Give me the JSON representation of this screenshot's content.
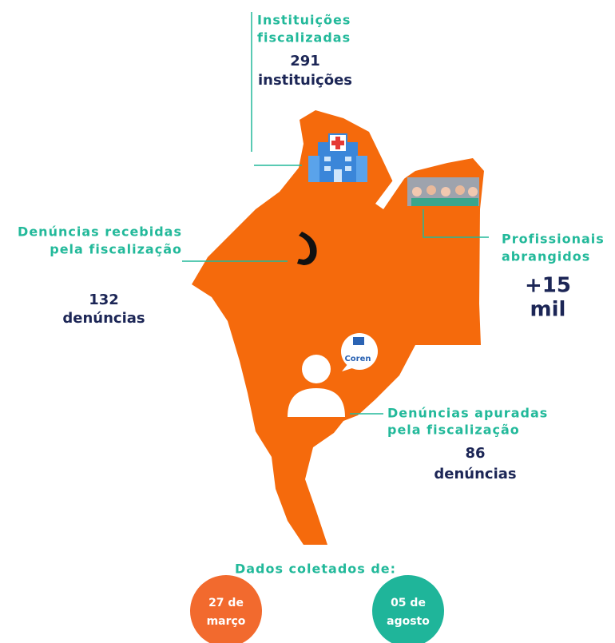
{
  "sections": [
    {
      "title": [
        "Instituições",
        "fiscalizadas"
      ],
      "value": "291",
      "unit": "instituições"
    },
    {
      "title": [
        "Denúncias recebidas",
        "pela fiscalização"
      ],
      "value": "132",
      "unit": "denúncias"
    },
    {
      "title": [
        "Profissionais",
        "abrangidos"
      ],
      "value": "+15",
      "unit": "mil"
    },
    {
      "title": [
        "Denúncias apuradas",
        "pela fiscalização"
      ],
      "value": "86",
      "unit": "denúncias"
    }
  ],
  "logo": "Coren",
  "period": {
    "label": "Dados coletados de:",
    "start": [
      "27 de",
      "março"
    ],
    "end": [
      "05 de",
      "agosto"
    ]
  }
}
